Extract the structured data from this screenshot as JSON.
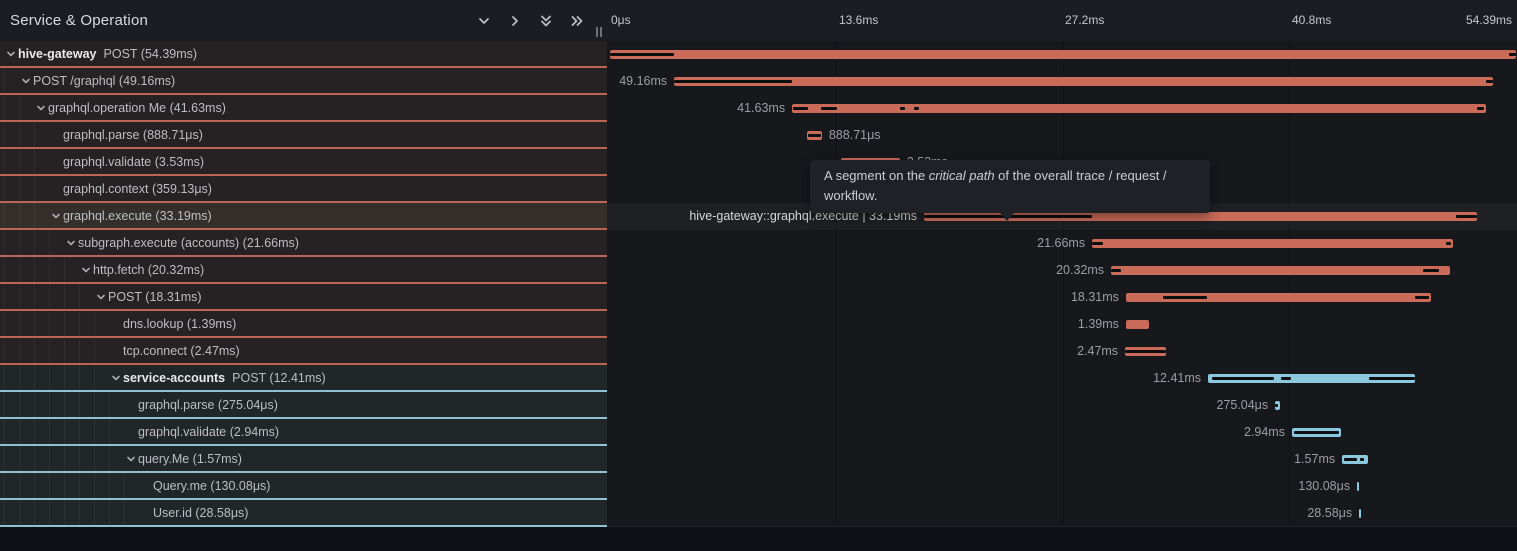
{
  "header": {
    "title": "Service & Operation",
    "ticks": [
      "0μs",
      "13.6ms",
      "27.2ms",
      "40.8ms",
      "54.39ms"
    ]
  },
  "timeline": {
    "max_ms": 54.39
  },
  "colors": {
    "red_bar": "#c96b58",
    "red_border": "#bb6553",
    "blue_bar": "#8bc8de",
    "blue_border": "#8fc1d6",
    "critical_path": "#0d0e10",
    "hover_row": "#342f2b"
  },
  "tooltip": {
    "text_pre": "A segment on the ",
    "text_italic": "critical path",
    "text_mid": " of the overall trace / request /",
    "text_line2": "workflow."
  },
  "spans": [
    {
      "service": "hive-gateway",
      "name": "POST (54.39ms)",
      "depth": 0,
      "chevron": true,
      "color": "red",
      "start_ms": 0,
      "duration_ms": 54.39,
      "track_label": "",
      "label_side": "none",
      "hovered": false,
      "critical": [
        [
          0,
          3.85
        ],
        [
          53.95,
          54.39
        ]
      ]
    },
    {
      "service": null,
      "name": "POST /graphql (49.16ms)",
      "depth": 1,
      "chevron": true,
      "color": "red",
      "start_ms": 3.85,
      "duration_ms": 49.16,
      "track_label": "49.16ms",
      "label_side": "left",
      "hovered": false,
      "critical": [
        [
          3.85,
          10.93
        ],
        [
          52.6,
          53.01
        ]
      ]
    },
    {
      "service": null,
      "name": "graphql.operation Me (41.63ms)",
      "depth": 2,
      "chevron": true,
      "color": "red",
      "start_ms": 10.93,
      "duration_ms": 41.63,
      "track_label": "41.63ms",
      "label_side": "left",
      "hovered": false,
      "critical": [
        [
          10.99,
          11.89
        ],
        [
          12.67,
          13.63
        ],
        [
          17.41,
          17.71
        ],
        [
          18.25,
          18.55
        ],
        [
          52.05,
          52.45
        ]
      ]
    },
    {
      "service": null,
      "name": "graphql.parse (888.71μs)",
      "depth": 3,
      "chevron": false,
      "color": "red",
      "start_ms": 11.83,
      "duration_ms": 0.889,
      "track_label": "888.71μs",
      "label_side": "right",
      "hovered": false,
      "critical": [
        [
          11.9,
          12.65
        ]
      ]
    },
    {
      "service": null,
      "name": "graphql.validate (3.53ms)",
      "depth": 3,
      "chevron": false,
      "color": "red",
      "start_ms": 13.87,
      "duration_ms": 3.53,
      "track_label": "3.53ms",
      "label_side": "right",
      "hovered": false,
      "critical": []
    },
    {
      "service": null,
      "name": "graphql.context (359.13μs)",
      "depth": 3,
      "chevron": false,
      "color": "red",
      "start_ms": 17.45,
      "duration_ms": 0.359,
      "track_label": "359.13μs",
      "label_side": "right",
      "hovered": false,
      "critical": []
    },
    {
      "service": null,
      "name": "graphql.execute (33.19ms)",
      "depth": 3,
      "chevron": true,
      "color": "red",
      "start_ms": 18.85,
      "duration_ms": 33.19,
      "track_label": "hive-gateway::graphql.execute | 33.19ms",
      "label_side": "left",
      "hovered": true,
      "critical": [
        [
          18.85,
          28.94
        ],
        [
          50.79,
          52.04
        ]
      ]
    },
    {
      "service": null,
      "name": "subgraph.execute (accounts) (21.66ms)",
      "depth": 4,
      "chevron": true,
      "color": "red",
      "start_ms": 28.94,
      "duration_ms": 21.66,
      "track_label": "21.66ms",
      "label_side": "left",
      "hovered": false,
      "critical": [
        [
          28.94,
          29.6
        ],
        [
          50.18,
          50.48
        ]
      ]
    },
    {
      "service": null,
      "name": "http.fetch (20.32ms)",
      "depth": 5,
      "chevron": true,
      "color": "red",
      "start_ms": 30.08,
      "duration_ms": 20.32,
      "track_label": "20.32ms",
      "label_side": "left",
      "hovered": false,
      "critical": [
        [
          30.08,
          30.68
        ],
        [
          48.8,
          49.76
        ]
      ]
    },
    {
      "service": null,
      "name": "POST (18.31ms)",
      "depth": 6,
      "chevron": true,
      "color": "red",
      "start_ms": 30.97,
      "duration_ms": 18.31,
      "track_label": "18.31ms",
      "label_side": "left",
      "hovered": false,
      "critical": [
        [
          33.19,
          35.83
        ],
        [
          48.32,
          49.16
        ]
      ]
    },
    {
      "service": null,
      "name": "dns.lookup (1.39ms)",
      "depth": 7,
      "chevron": false,
      "color": "red",
      "start_ms": 30.97,
      "duration_ms": 1.39,
      "track_label": "1.39ms",
      "label_side": "left",
      "hovered": false,
      "critical": []
    },
    {
      "service": null,
      "name": "tcp.connect (2.47ms)",
      "depth": 7,
      "chevron": false,
      "color": "red",
      "start_ms": 30.92,
      "duration_ms": 2.47,
      "track_label": "2.47ms",
      "label_side": "left",
      "hovered": false,
      "critical": [
        [
          30.92,
          33.39
        ]
      ]
    },
    {
      "service": "service-accounts",
      "name": "POST (12.41ms)",
      "depth": 7,
      "chevron": true,
      "color": "blue",
      "start_ms": 35.9,
      "duration_ms": 12.41,
      "track_label": "12.41ms",
      "label_side": "left",
      "hovered": false,
      "critical": [
        [
          36.14,
          39.86
        ],
        [
          40.28,
          40.88
        ],
        [
          45.56,
          48.31
        ]
      ]
    },
    {
      "service": null,
      "name": "graphql.parse (275.04μs)",
      "depth": 8,
      "chevron": false,
      "color": "blue",
      "start_ms": 39.93,
      "duration_ms": 0.275,
      "track_label": "275.04μs",
      "label_side": "left",
      "hovered": false,
      "critical": [
        [
          39.95,
          40.1
        ]
      ]
    },
    {
      "service": null,
      "name": "graphql.validate (2.94ms)",
      "depth": 8,
      "chevron": false,
      "color": "blue",
      "start_ms": 40.94,
      "duration_ms": 2.94,
      "track_label": "2.94ms",
      "label_side": "left",
      "hovered": false,
      "critical": [
        [
          41.05,
          43.75
        ]
      ]
    },
    {
      "service": null,
      "name": "query.Me (1.57ms)",
      "depth": 8,
      "chevron": true,
      "color": "blue",
      "start_ms": 43.95,
      "duration_ms": 1.57,
      "track_label": "1.57ms",
      "label_side": "left",
      "hovered": false,
      "critical": [
        [
          44.05,
          44.84
        ],
        [
          45.05,
          45.29
        ]
      ]
    },
    {
      "service": null,
      "name": "Query.me (130.08μs)",
      "depth": 9,
      "chevron": false,
      "color": "blue",
      "start_ms": 44.85,
      "duration_ms": 0.13,
      "track_label": "130.08μs",
      "label_side": "left",
      "hovered": false,
      "critical": []
    },
    {
      "service": null,
      "name": "User.id (28.58μs)",
      "depth": 9,
      "chevron": false,
      "color": "blue",
      "start_ms": 44.97,
      "duration_ms": 0.029,
      "track_label": "28.58μs",
      "label_side": "left",
      "hovered": false,
      "critical": []
    }
  ]
}
